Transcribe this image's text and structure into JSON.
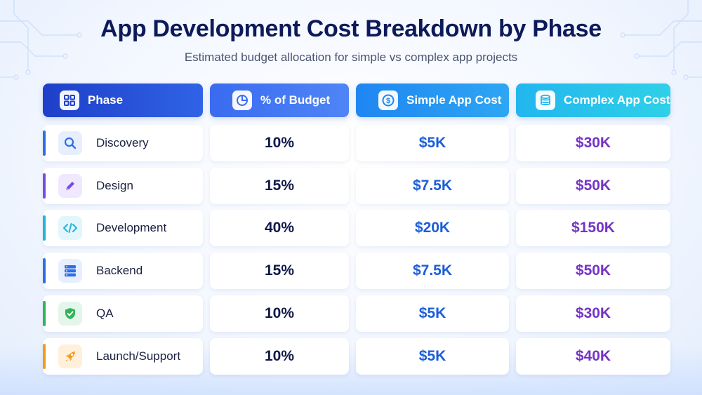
{
  "title": "App Development Cost Breakdown by Phase",
  "subtitle": "Estimated budget allocation for simple vs complex app projects",
  "headers": {
    "phase": "Phase",
    "pct": "% of Budget",
    "simple": "Simple App Cost",
    "complex": "Complex App Cost"
  },
  "colors": {
    "simple_value": "#1b5ed8",
    "complex_value": "#7433c6"
  },
  "rows": [
    {
      "phase": "Discovery",
      "icon": "search-icon",
      "accent": "#2f6fe6",
      "pct": "10%",
      "simple": "$5K",
      "complex": "$30K"
    },
    {
      "phase": "Design",
      "icon": "pencil-icon",
      "accent": "#7a4de0",
      "pct": "15%",
      "simple": "$7.5K",
      "complex": "$50K"
    },
    {
      "phase": "Development",
      "icon": "code-icon",
      "accent": "#22b5d6",
      "pct": "40%",
      "simple": "$20K",
      "complex": "$150K"
    },
    {
      "phase": "Backend",
      "icon": "server-icon",
      "accent": "#2f6fe6",
      "pct": "15%",
      "simple": "$7.5K",
      "complex": "$50K"
    },
    {
      "phase": "QA",
      "icon": "shield-check-icon",
      "accent": "#2fb457",
      "pct": "10%",
      "simple": "$5K",
      "complex": "$30K"
    },
    {
      "phase": "Launch/Support",
      "icon": "rocket-icon",
      "accent": "#f29a1c",
      "pct": "10%",
      "simple": "$5K",
      "complex": "$40K"
    }
  ]
}
